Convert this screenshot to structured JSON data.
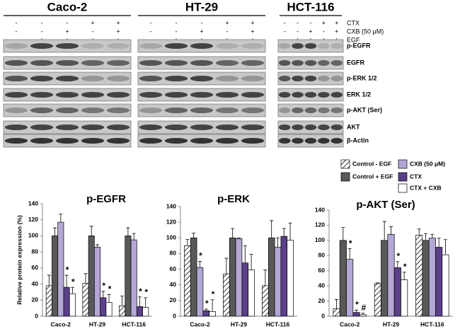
{
  "blot": {
    "panels": [
      {
        "title": "Caco-2",
        "signs": [
          [
            "-",
            "-",
            "-",
            "+",
            "+"
          ],
          [
            "-",
            "-",
            "+",
            "-",
            "+"
          ],
          [
            "-",
            "+",
            "+",
            "+",
            "+"
          ]
        ]
      },
      {
        "title": "HT-29",
        "signs": [
          [
            "-",
            "-",
            "-",
            "+",
            "+"
          ],
          [
            "-",
            "-",
            "+",
            "-",
            "+"
          ],
          [
            "-",
            "+",
            "+",
            "+",
            "+"
          ]
        ]
      },
      {
        "title": "HCT-116",
        "signs": [
          [
            "-",
            "-",
            "-",
            "+",
            "+"
          ],
          [
            "-",
            "-",
            "+",
            "-",
            "+"
          ],
          [
            "-",
            "+",
            "+",
            "+",
            "+"
          ]
        ]
      }
    ],
    "treatments": [
      "CTX",
      "CXB (50 μM)",
      "EGF"
    ],
    "proteins": [
      "p-EGFR",
      "EGFR",
      "p-ERK 1/2",
      "ERK 1/2",
      "p-AKT (Ser)",
      "AKT",
      "β-Actin"
    ]
  },
  "chart_data": [
    {
      "type": "bar",
      "title": "p-EGFR",
      "ylabel": "Relative protein expression (%)",
      "categories": [
        "Caco-2",
        "HT-29",
        "HCT-116"
      ],
      "ylim": [
        0,
        140
      ],
      "yticks": [
        0,
        20,
        40,
        60,
        80,
        100,
        120,
        140
      ],
      "series": [
        {
          "name": "Control - EGF",
          "color": "#ffffff",
          "pattern": "hatch",
          "values": [
            38,
            41,
            13
          ],
          "errors": [
            13,
            12,
            12
          ],
          "annotations": [
            null,
            null,
            null
          ]
        },
        {
          "name": "Control + EGF",
          "color": "#595959",
          "values": [
            100,
            100,
            100
          ],
          "errors": [
            10,
            12,
            10
          ],
          "annotations": [
            null,
            null,
            null
          ]
        },
        {
          "name": "CXB (50 μM)",
          "color": "#b4a7d6",
          "values": [
            117,
            86,
            95
          ],
          "errors": [
            10,
            3,
            8
          ],
          "annotations": [
            null,
            null,
            null
          ]
        },
        {
          "name": "CTX",
          "color": "#5b3f8a",
          "values": [
            36,
            23,
            12
          ],
          "errors": [
            15,
            8,
            12
          ],
          "annotations": [
            "*",
            "*",
            "*"
          ]
        },
        {
          "name": "CTX + CXB",
          "color": "#ffffff",
          "values": [
            28,
            17,
            11
          ],
          "errors": [
            8,
            10,
            12
          ],
          "annotations": [
            "*",
            "*",
            "*"
          ]
        }
      ]
    },
    {
      "type": "bar",
      "title": "p-ERK",
      "categories": [
        "Caco-2",
        "HT-29",
        "HCT-116"
      ],
      "ylim": [
        0,
        140
      ],
      "yticks": [
        0,
        20,
        40,
        60,
        80,
        100,
        120,
        140
      ],
      "series": [
        {
          "name": "Control - EGF",
          "color": "#ffffff",
          "pattern": "hatch",
          "values": [
            90,
            54,
            39
          ],
          "errors": [
            8,
            20,
            20
          ],
          "annotations": [
            null,
            null,
            null
          ]
        },
        {
          "name": "Control + EGF",
          "color": "#595959",
          "values": [
            100,
            100,
            100
          ],
          "errors": [
            6,
            12,
            22
          ],
          "annotations": [
            null,
            null,
            null
          ]
        },
        {
          "name": "CXB (50 μM)",
          "color": "#b4a7d6",
          "values": [
            62,
            99,
            88
          ],
          "errors": [
            8,
            1,
            12
          ],
          "annotations": [
            "*",
            null,
            null
          ]
        },
        {
          "name": "CTX",
          "color": "#5b3f8a",
          "values": [
            7,
            68,
            102
          ],
          "errors": [
            2,
            22,
            10
          ],
          "annotations": [
            "*",
            null,
            null
          ]
        },
        {
          "name": "CTX + CXB",
          "color": "#ffffff",
          "values": [
            6,
            59,
            97
          ],
          "errors": [
            15,
            20,
            22
          ],
          "annotations": [
            "*",
            null,
            null
          ]
        }
      ]
    },
    {
      "type": "bar",
      "title": "p-AKT (Ser)",
      "categories": [
        "Caco-2",
        "HT-29",
        "HCT-116"
      ],
      "ylim": [
        0,
        140
      ],
      "yticks": [
        0,
        20,
        40,
        60,
        80,
        100,
        120,
        140
      ],
      "series": [
        {
          "name": "Control - EGF",
          "color": "#ffffff",
          "pattern": "hatch",
          "values": [
            10,
            43,
            107
          ],
          "errors": [
            12,
            1,
            8
          ],
          "annotations": [
            null,
            null,
            null
          ]
        },
        {
          "name": "Control + EGF",
          "color": "#595959",
          "values": [
            100,
            100,
            100
          ],
          "errors": [
            17,
            25,
            9
          ],
          "annotations": [
            null,
            null,
            null
          ]
        },
        {
          "name": "CXB (50 μM)",
          "color": "#b4a7d6",
          "values": [
            75,
            108,
            103
          ],
          "errors": [
            14,
            10,
            5
          ],
          "annotations": [
            "*",
            null,
            null
          ]
        },
        {
          "name": "CTX",
          "color": "#5b3f8a",
          "values": [
            5,
            64,
            91
          ],
          "errors": [
            3,
            8,
            12
          ],
          "annotations": [
            "*",
            "*",
            null
          ]
        },
        {
          "name": "CTX + CXB",
          "color": "#ffffff",
          "values": [
            2,
            48,
            81
          ],
          "errors": [
            2,
            10,
            20
          ],
          "annotations": [
            "#",
            "*",
            null
          ]
        }
      ]
    }
  ]
}
